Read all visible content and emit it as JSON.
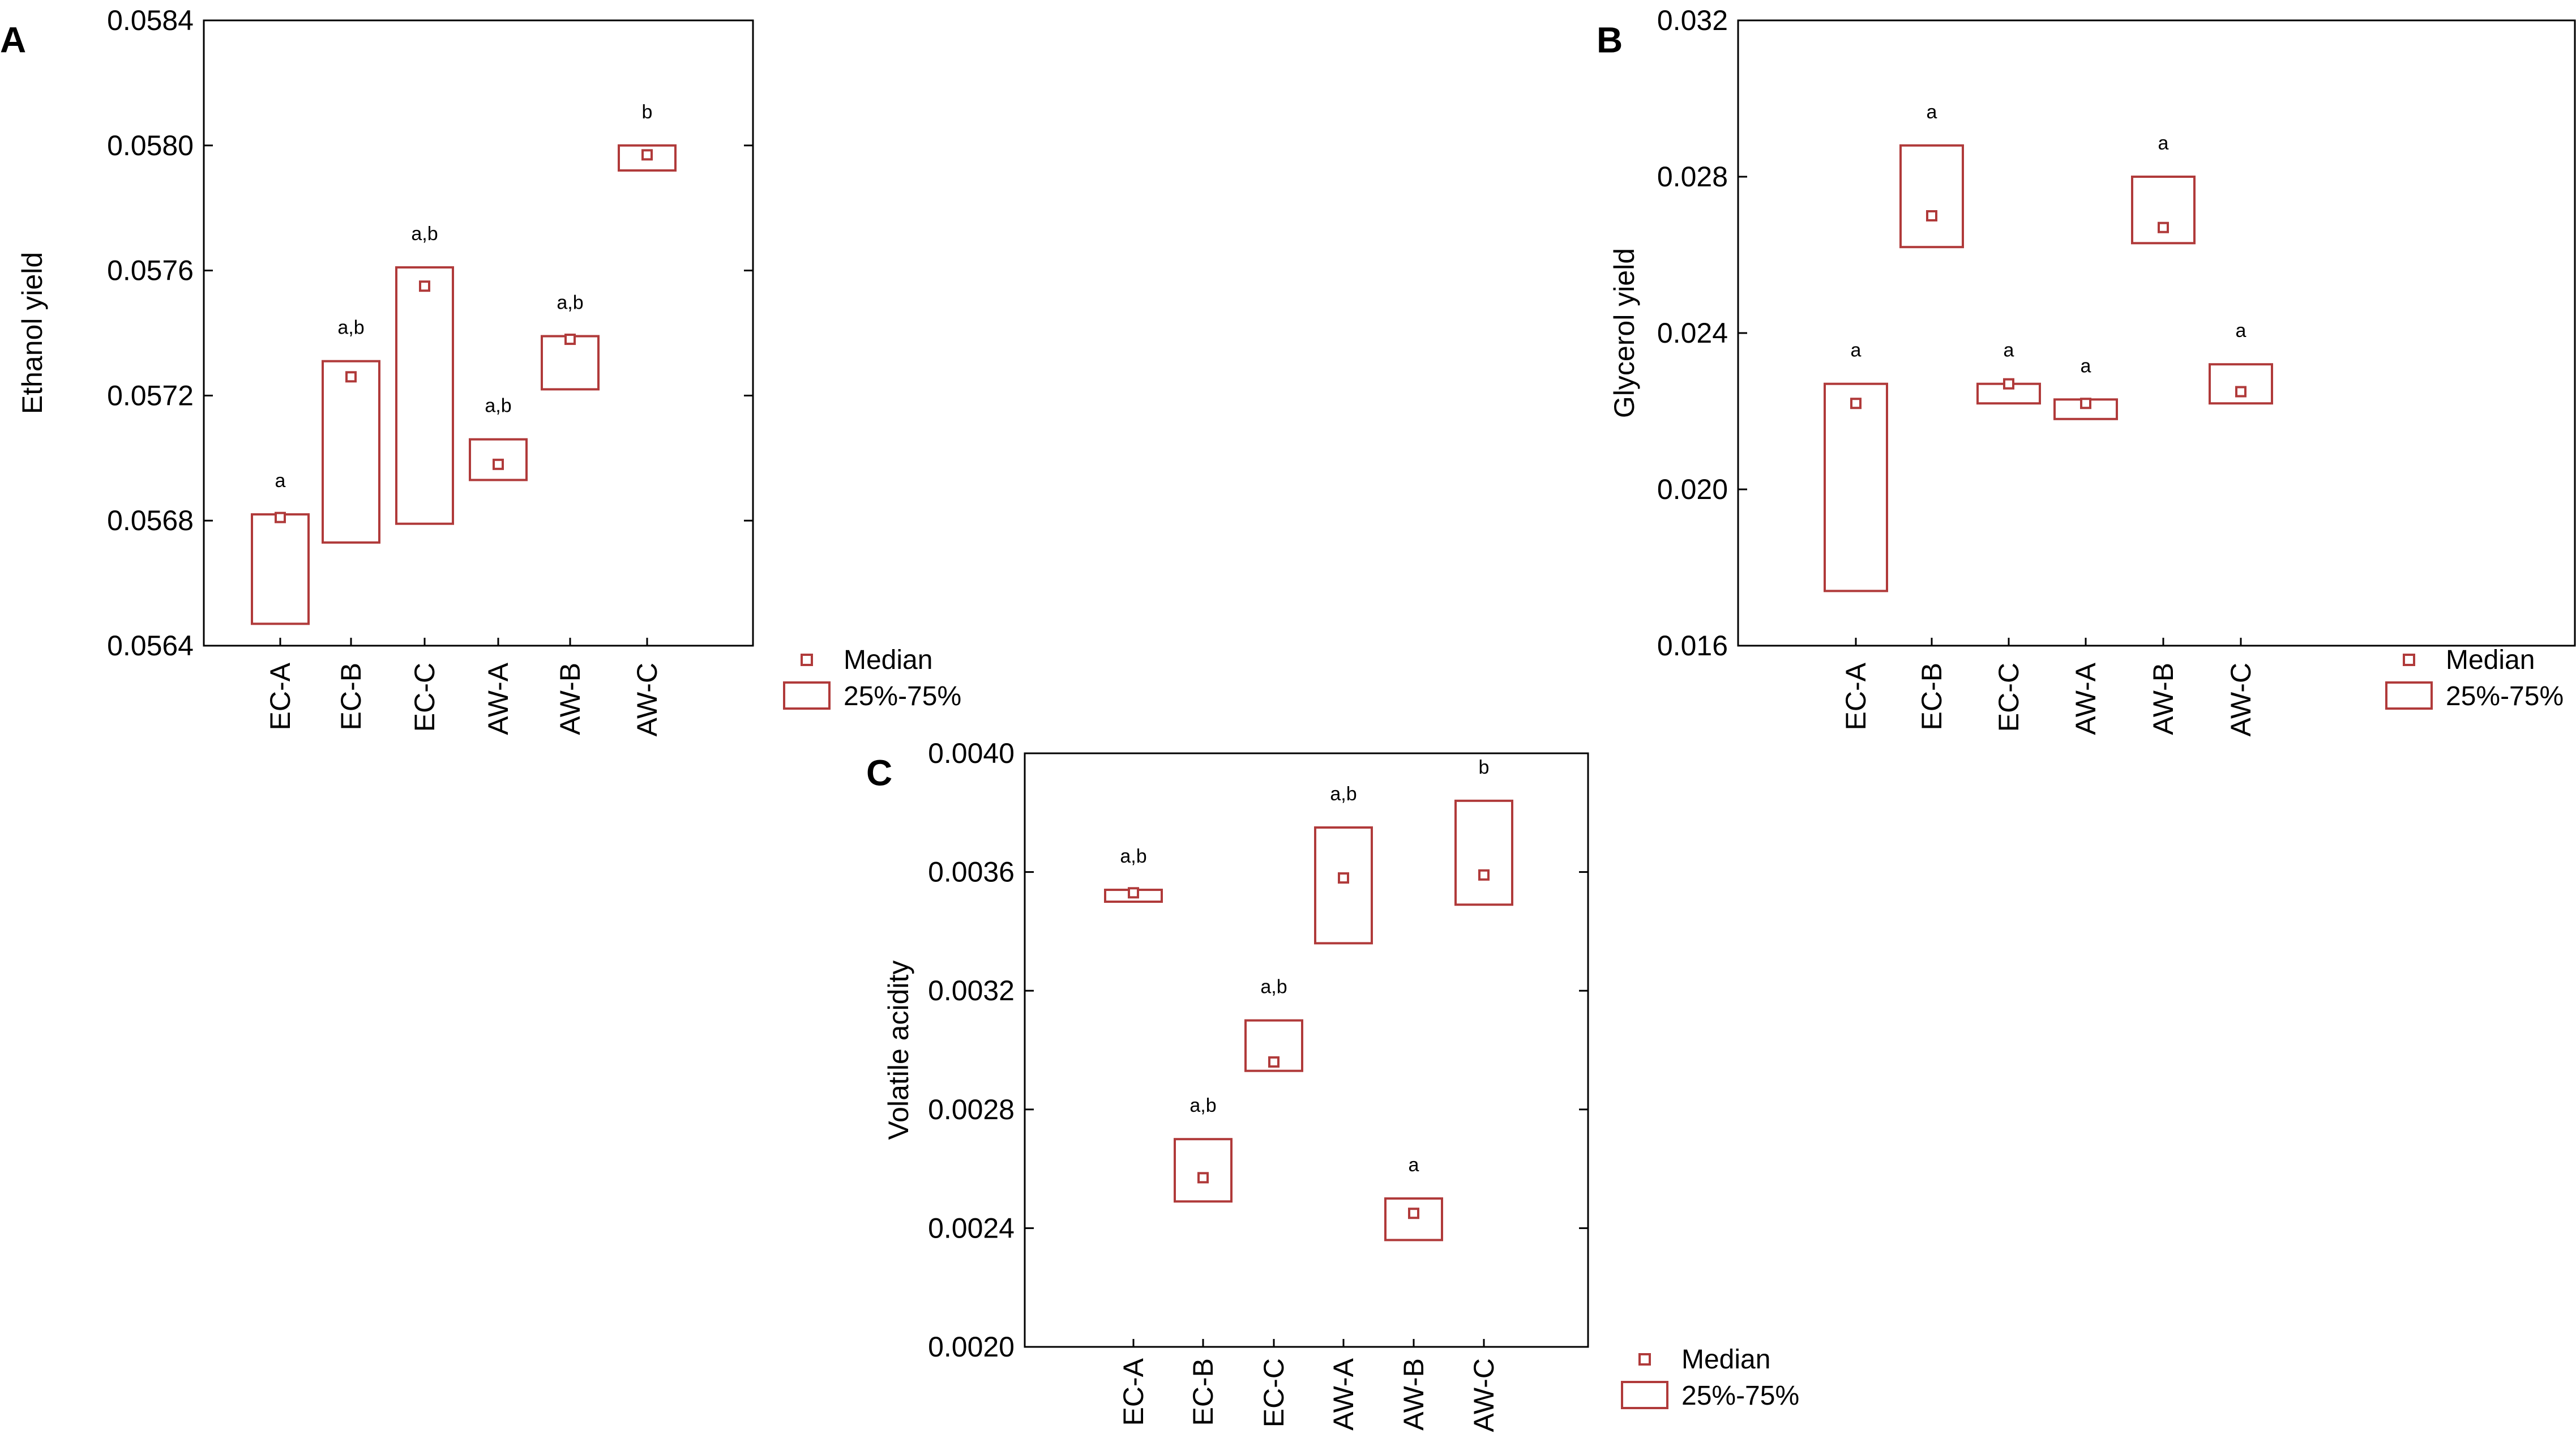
{
  "colors": {
    "box": "#b03a3a",
    "axis": "#000000",
    "background": "#ffffff"
  },
  "legend": {
    "median_label": "Median",
    "range_label": "25%-75%"
  },
  "chart_data": [
    {
      "type": "box",
      "panel": "A",
      "ylabel": "Ethanol yield",
      "xlabel": "",
      "ylim": [
        0.0564,
        0.0584
      ],
      "yticks": [
        0.0564,
        0.0568,
        0.0572,
        0.0576,
        0.058,
        0.0584
      ],
      "ytick_labels": [
        "0.0564",
        "0.0568",
        "0.0572",
        "0.0576",
        "0.0580",
        "0.0584"
      ],
      "categories": [
        "EC-A",
        "EC-B",
        "EC-C",
        "AW-A",
        "AW-B",
        "AW-C"
      ],
      "median": [
        0.05681,
        0.05726,
        0.05755,
        0.05698,
        0.05738,
        0.05797
      ],
      "q1": [
        0.05647,
        0.05673,
        0.05679,
        0.05693,
        0.05722,
        0.05792
      ],
      "q3": [
        0.05682,
        0.05731,
        0.05761,
        0.05706,
        0.05739,
        0.058
      ],
      "significance": [
        "a",
        "a,b",
        "a,b",
        "a,b",
        "a,b",
        "b"
      ],
      "grid": false,
      "legend_position": "outside-bottom-right"
    },
    {
      "type": "box",
      "panel": "B",
      "ylabel": "Glycerol yield",
      "xlabel": "",
      "ylim": [
        0.016,
        0.032
      ],
      "yticks": [
        0.016,
        0.02,
        0.024,
        0.028,
        0.032
      ],
      "ytick_labels": [
        "0.016",
        "0.020",
        "0.024",
        "0.028",
        "0.032"
      ],
      "categories": [
        "EC-A",
        "EC-B",
        "EC-C",
        "AW-A",
        "AW-B",
        "AW-C"
      ],
      "median": [
        0.0222,
        0.027,
        0.0227,
        0.0222,
        0.0267,
        0.0225
      ],
      "q1": [
        0.0174,
        0.0262,
        0.0222,
        0.0218,
        0.0263,
        0.0222
      ],
      "q3": [
        0.0227,
        0.0288,
        0.0227,
        0.0223,
        0.028,
        0.0232
      ],
      "significance": [
        "a",
        "a",
        "a",
        "a",
        "a",
        "a"
      ],
      "grid": false,
      "legend_position": "outside-bottom-right"
    },
    {
      "type": "box",
      "panel": "C",
      "ylabel": "Volatile acidity",
      "xlabel": "",
      "ylim": [
        0.002,
        0.004
      ],
      "yticks": [
        0.002,
        0.0024,
        0.0028,
        0.0032,
        0.0036,
        0.004
      ],
      "ytick_labels": [
        "0.0020",
        "0.0024",
        "0.0028",
        "0.0032",
        "0.0036",
        "0.0040"
      ],
      "categories": [
        "EC-A",
        "EC-B",
        "EC-C",
        "AW-A",
        "AW-B",
        "AW-C"
      ],
      "median": [
        0.00353,
        0.00257,
        0.00296,
        0.00358,
        0.00245,
        0.00359
      ],
      "q1": [
        0.0035,
        0.00249,
        0.00293,
        0.00336,
        0.00236,
        0.00349
      ],
      "q3": [
        0.00354,
        0.0027,
        0.0031,
        0.00375,
        0.0025,
        0.00384
      ],
      "significance": [
        "a,b",
        "a,b",
        "a,b",
        "a,b",
        "a",
        "b"
      ],
      "grid": false,
      "legend_position": "outside-bottom-right"
    }
  ]
}
